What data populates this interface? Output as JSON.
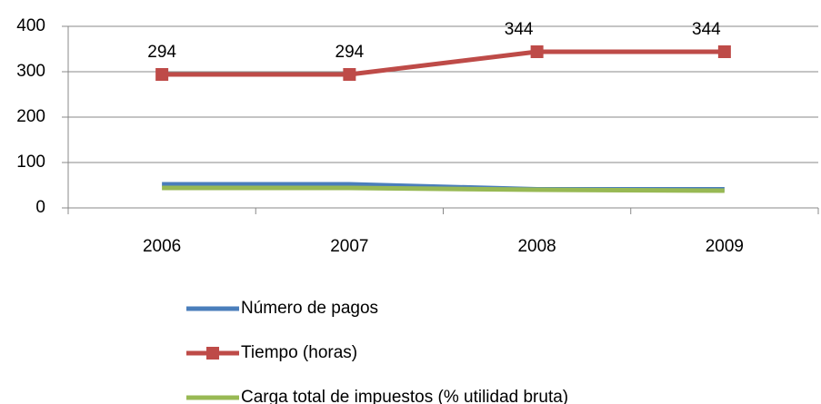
{
  "chart_data": {
    "type": "line",
    "categories": [
      "2006",
      "2007",
      "2008",
      "2009"
    ],
    "series": [
      {
        "name": "Número de pagos",
        "color": "#4a7ebb",
        "values": [
          52,
          52,
          41,
          41
        ]
      },
      {
        "name": "Tiempo (horas)",
        "color": "#be4b48",
        "values": [
          294,
          294,
          344,
          344
        ],
        "marker": "square",
        "data_labels": true
      },
      {
        "name": "Carga total de impuestos (% utilidad bruta)",
        "color": "#98b954",
        "values": [
          44,
          44,
          40,
          38
        ]
      }
    ],
    "ylim": [
      0,
      400
    ],
    "yticks": [
      0,
      100,
      200,
      300,
      400
    ],
    "grid": true,
    "legend": "bottom"
  }
}
